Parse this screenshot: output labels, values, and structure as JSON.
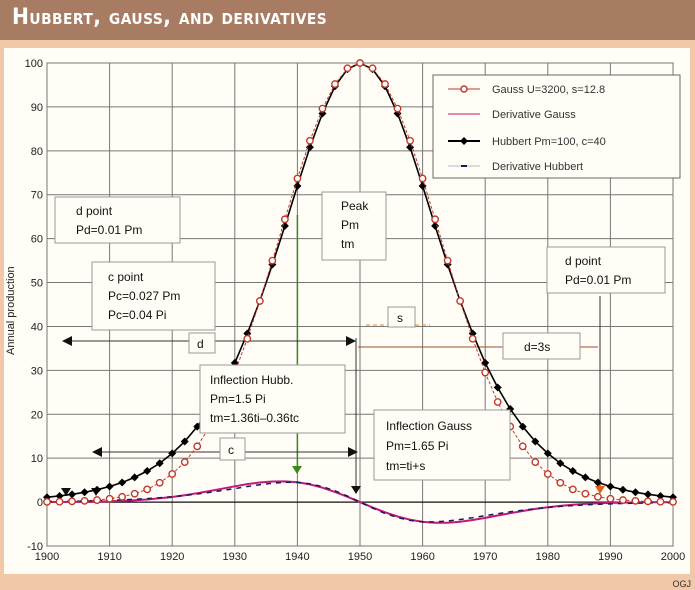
{
  "title": "Hubbert, gauss, and derivatives",
  "credit": "OGJ",
  "colors": {
    "background": "#f2c9a8",
    "title_band": "#a77c63",
    "gauss": "#c0392b",
    "hubbert": "#000000",
    "derivative_gauss": "#c2187a",
    "derivative_hubbert": "#1a1a5a",
    "peak_line": "#3a8a1a",
    "d_marker_right": "#e0601a"
  },
  "chart_data": {
    "type": "line",
    "title": "Hubbert, gauss, and derivatives",
    "xlabel": "",
    "ylabel": "Annual production",
    "xlim": [
      1900,
      2000
    ],
    "ylim": [
      -10,
      100
    ],
    "x_ticks": [
      "1900",
      "1910",
      "1920",
      "1930",
      "1940",
      "1950",
      "1960",
      "1970",
      "1980",
      "1990",
      "2000"
    ],
    "y_ticks": [
      "-10",
      "0",
      "10",
      "20",
      "30",
      "40",
      "50",
      "60",
      "70",
      "80",
      "90",
      "100"
    ],
    "grid": true,
    "legend_position": "top-right",
    "x": [
      1900,
      1902,
      1904,
      1906,
      1908,
      1910,
      1912,
      1914,
      1916,
      1918,
      1920,
      1922,
      1924,
      1926,
      1928,
      1930,
      1932,
      1934,
      1936,
      1938,
      1940,
      1942,
      1944,
      1946,
      1948,
      1950,
      1952,
      1954,
      1956,
      1958,
      1960,
      1962,
      1964,
      1966,
      1968,
      1970,
      1972,
      1974,
      1976,
      1978,
      1980,
      1982,
      1984,
      1986,
      1988,
      1990,
      1992,
      1994,
      1996,
      1998,
      2000
    ],
    "series": [
      {
        "name": "Gauss U=3200, s=12.8",
        "marker": "open-circle",
        "values": [
          0.05,
          0.09,
          0.16,
          0.27,
          0.46,
          0.76,
          1.2,
          1.9,
          2.9,
          4.4,
          6.4,
          9.1,
          12.7,
          17.2,
          22.8,
          29.5,
          37.2,
          45.8,
          55.0,
          64.4,
          73.7,
          82.3,
          89.6,
          95.2,
          98.8,
          100,
          98.8,
          95.2,
          89.6,
          82.3,
          73.7,
          64.4,
          55.0,
          45.8,
          37.2,
          29.5,
          22.8,
          17.2,
          12.7,
          9.1,
          6.4,
          4.4,
          2.9,
          1.9,
          1.2,
          0.76,
          0.46,
          0.27,
          0.16,
          0.09,
          0.05
        ]
      },
      {
        "name": "Derivative Gauss",
        "marker": "none",
        "values": [
          0.02,
          0.03,
          0.04,
          0.07,
          0.12,
          0.19,
          0.28,
          0.42,
          0.6,
          0.86,
          1.17,
          1.56,
          2.02,
          2.52,
          3.06,
          3.6,
          4.09,
          4.47,
          4.7,
          4.72,
          4.5,
          4.02,
          3.28,
          2.32,
          1.21,
          0,
          -1.21,
          -2.32,
          -3.28,
          -4.02,
          -4.5,
          -4.72,
          -4.7,
          -4.47,
          -4.09,
          -3.6,
          -3.06,
          -2.52,
          -2.02,
          -1.56,
          -1.17,
          -0.86,
          -0.6,
          -0.42,
          -0.28,
          -0.19,
          -0.12,
          -0.07,
          -0.04,
          -0.03,
          -0.02
        ]
      },
      {
        "name": "Hubbert Pm=100, c=40",
        "marker": "filled-diamond",
        "values": [
          1.11,
          1.4,
          1.77,
          2.24,
          2.82,
          3.55,
          4.47,
          5.63,
          7.07,
          8.85,
          11.1,
          13.8,
          17.2,
          21.2,
          26.1,
          31.7,
          38.4,
          45.8,
          54.1,
          62.9,
          72.0,
          80.8,
          88.5,
          94.7,
          98.6,
          100,
          98.6,
          94.7,
          88.5,
          80.8,
          72.0,
          62.9,
          54.1,
          45.8,
          38.4,
          31.7,
          26.1,
          21.2,
          17.2,
          13.8,
          11.1,
          8.85,
          7.07,
          5.63,
          4.47,
          3.55,
          2.82,
          2.24,
          1.77,
          1.4,
          1.11
        ]
      },
      {
        "name": "Derivative Hubbert",
        "marker": "dash",
        "values": [
          0.13,
          0.16,
          0.21,
          0.26,
          0.33,
          0.41,
          0.51,
          0.64,
          0.8,
          0.99,
          1.23,
          1.51,
          1.84,
          2.21,
          2.64,
          3.08,
          3.55,
          3.96,
          4.31,
          4.5,
          4.48,
          4.17,
          3.53,
          2.57,
          1.36,
          0,
          -1.36,
          -2.57,
          -3.53,
          -4.17,
          -4.48,
          -4.5,
          -4.31,
          -3.96,
          -3.55,
          -3.08,
          -2.64,
          -2.21,
          -1.84,
          -1.51,
          -1.23,
          -0.99,
          -0.8,
          -0.64,
          -0.51,
          -0.41,
          -0.33,
          -0.26,
          -0.21,
          -0.16,
          -0.13
        ]
      }
    ],
    "annotations": {
      "d_point_left": [
        "d point",
        "Pd=0.01 Pm"
      ],
      "c_point": [
        "c point",
        "Pc=0.027 Pm",
        "Pc=0.04 Pi"
      ],
      "d_label": "d",
      "peak": [
        "Peak",
        "Pm",
        "tm"
      ],
      "s_label": "s",
      "d3s_label": "d=3s",
      "d_point_right": [
        "d point",
        "Pd=0.01 Pm"
      ],
      "inflection_hubbert": [
        "Inflection Hubb.",
        "Pm=1.5 Pi",
        "tm=1.36ti–0.36tc"
      ],
      "c_label": "c",
      "inflection_gauss": [
        "Inflection Gauss",
        "Pm=1.65 Pi",
        "tm=ti+s"
      ]
    }
  }
}
